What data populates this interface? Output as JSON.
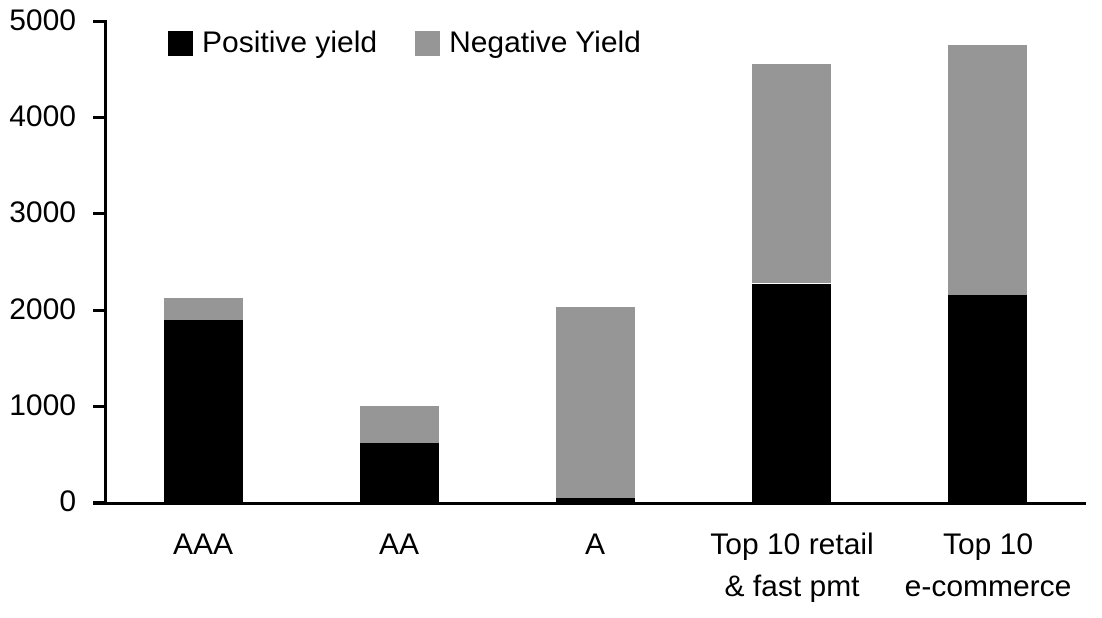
{
  "chart_data": {
    "type": "bar",
    "stacked": true,
    "title": "",
    "xlabel": "",
    "ylabel": "",
    "categories": [
      "AAA",
      "AA",
      "A",
      "Top 10 retail\n& fast pmt",
      "Top 10\ne-commerce"
    ],
    "series": [
      {
        "name": "Positive yield",
        "color": "#000000",
        "values": [
          1890,
          620,
          40,
          2270,
          2150
        ]
      },
      {
        "name": "Negative Yield",
        "color": "#969696",
        "values": [
          230,
          380,
          1990,
          2280,
          2600
        ]
      }
    ],
    "totals": [
      2120,
      1000,
      2030,
      4550,
      4750
    ],
    "ylim": [
      0,
      5000
    ],
    "ytick_step": 1000,
    "ytick_labels": [
      "0",
      "1000",
      "2000",
      "3000",
      "4000",
      "5000"
    ],
    "grid": false,
    "legend_position": "top",
    "axis_color": "#000000",
    "background_color": "#ffffff"
  }
}
